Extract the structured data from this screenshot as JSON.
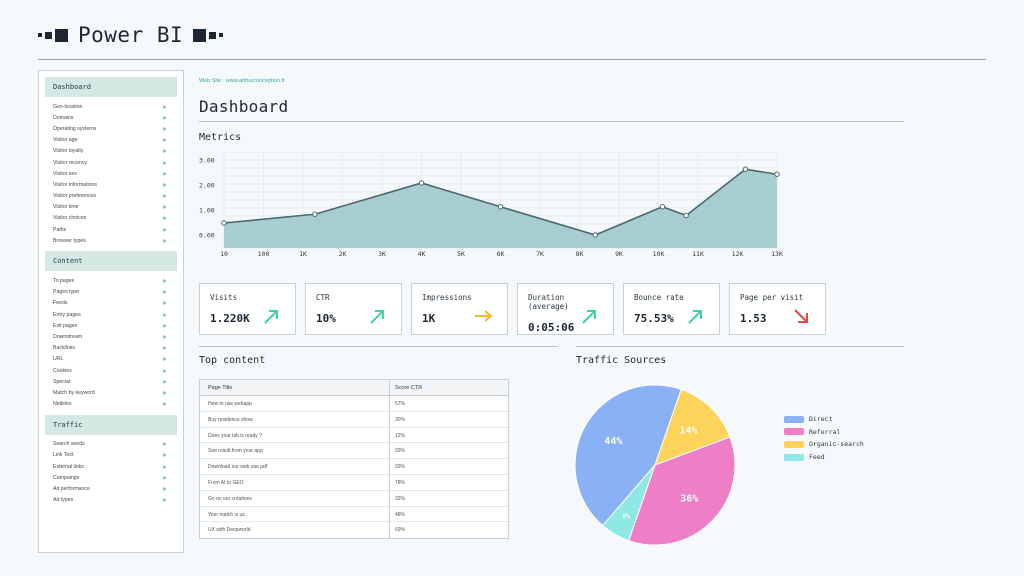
{
  "app": {
    "title": "Power BI"
  },
  "website": "Web Site : www.arthurconception.fr",
  "page_title": "Dashboard",
  "metrics_label": "Metrics",
  "sidebar": {
    "sections": [
      {
        "title": "Dashboard",
        "items": [
          "Geo-location",
          "Domains",
          "Operating systems",
          "Visitor age",
          "Visitor loyalty",
          "Visitor recency",
          "Visitor sex",
          "Visitor informations",
          "Visitor preferences",
          "Visitor time",
          "Visitor choices",
          "Paths",
          "Browser types"
        ]
      },
      {
        "title": "Content",
        "items": [
          "To pages",
          "Pages type",
          "Feeds",
          "Entry pages",
          "Exit pages",
          "Downstream",
          "Backlinks",
          "URL",
          "Cookies",
          "Special",
          "Match by keyword",
          "Netlinks"
        ]
      },
      {
        "title": "Traffic",
        "items": [
          "Search words",
          "Link Text",
          "External links",
          "Campaings",
          "Ad performance",
          "Ad types"
        ]
      }
    ]
  },
  "chart_data": {
    "type": "area",
    "x": [
      "10",
      "100",
      "1K",
      "2K",
      "3K",
      "4K",
      "5K",
      "6K",
      "7K",
      "8K",
      "9K",
      "10K",
      "11K",
      "12K",
      "13K"
    ],
    "points": [
      {
        "x": 0,
        "y": 0.5
      },
      {
        "x": 2.3,
        "y": 0.85
      },
      {
        "x": 5,
        "y": 2.1
      },
      {
        "x": 7,
        "y": 1.15
      },
      {
        "x": 9.4,
        "y": 0.02
      },
      {
        "x": 11.1,
        "y": 1.15
      },
      {
        "x": 11.7,
        "y": 0.8
      },
      {
        "x": 13.2,
        "y": 2.65
      },
      {
        "x": 14,
        "y": 2.45
      }
    ],
    "yticks": [
      "0.00",
      "1.00",
      "2.00",
      "3.00"
    ],
    "ylim": [
      0,
      3
    ],
    "color": "#a8cdd0",
    "line_color": "#4a6870"
  },
  "kpis": [
    {
      "label": "Visits",
      "value": "1.220K",
      "icon": "arrow-up-right-icon",
      "color": "#3fd49a"
    },
    {
      "label": "CTR",
      "value": "10%",
      "icon": "arrow-up-right-icon",
      "color": "#3fd49a"
    },
    {
      "label": "Impressions",
      "value": "1K",
      "icon": "arrow-right-icon",
      "color": "#f2b632"
    },
    {
      "label": "Duration (average)",
      "value": "0:05:06",
      "icon": "arrow-up-right-icon",
      "color": "#3fd49a"
    },
    {
      "label": "Bounce rate",
      "value": "75.53%",
      "icon": "arrow-up-right-icon",
      "color": "#3fd49a"
    },
    {
      "label": "Page per visit",
      "value": "1.53",
      "icon": "arrow-down-right-icon",
      "color": "#e84545"
    }
  ],
  "top_content": {
    "title": "Top content",
    "headers": [
      "Page Title",
      "Score CTR"
    ],
    "rows": [
      [
        "How to use webapp",
        "57%"
      ],
      [
        "Buy residence show",
        "30%"
      ],
      [
        "Does your lab is ready ?",
        "12%"
      ],
      [
        "See result from your app",
        "93%"
      ],
      [
        "Download our web use pdf",
        "93%"
      ],
      [
        "From AI to GEO",
        "78%"
      ],
      [
        "Go on our creations",
        "32%"
      ],
      [
        "Your match is us",
        "48%"
      ],
      [
        "UX with Deepworld",
        "69%"
      ]
    ]
  },
  "traffic": {
    "title": "Traffic Sources",
    "slices": [
      {
        "name": "Direct",
        "value": 44,
        "label": "44%",
        "color": "#8ab0f5"
      },
      {
        "name": "Referral",
        "value": 36,
        "label": "36%",
        "color": "#ee7fc6"
      },
      {
        "name": "Organic-search",
        "value": 14,
        "label": "14%",
        "color": "#fdd35b"
      },
      {
        "name": "Feed",
        "value": 6,
        "label": "6%",
        "color": "#8fe8e3"
      }
    ]
  }
}
